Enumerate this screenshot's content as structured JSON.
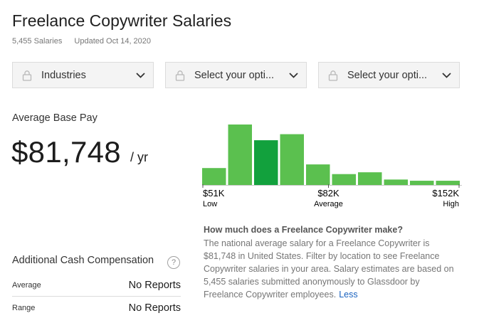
{
  "header": {
    "title": "Freelance Copywriter Salaries",
    "salary_count": "5,455 Salaries",
    "updated": "Updated Oct 14, 2020"
  },
  "filters": [
    {
      "label": "Industries",
      "icon": "lock-icon"
    },
    {
      "label": "Select your opti...",
      "icon": "lock-icon"
    },
    {
      "label": "Select your opti...",
      "icon": "lock-icon"
    }
  ],
  "average_pay": {
    "label": "Average Base Pay",
    "value": "$81,748",
    "unit": "/ yr"
  },
  "histogram": {
    "colors": {
      "bar": "#5bc04f",
      "highlight": "#12a13d"
    },
    "relative_heights": [
      0.28,
      1.0,
      0.74,
      0.84,
      0.34,
      0.18,
      0.21,
      0.09,
      0.07,
      0.07
    ],
    "highlight_index": 2,
    "axis": [
      {
        "value": "$51K",
        "sub": "Low"
      },
      {
        "value": "$82K",
        "sub": "Average"
      },
      {
        "value": "$152K",
        "sub": "High"
      }
    ]
  },
  "info": {
    "question": "How much does a Freelance Copywriter make?",
    "text": "The national average salary for a Freelance Copywriter is $81,748 in United States. Filter by location to see Freelance Copywriter salaries in your area. Salary estimates are based on 5,455 salaries submitted anonymously to Glassdoor by Freelance Copywriter employees.",
    "link": "Less"
  },
  "additional_cash": {
    "title": "Additional Cash Compensation",
    "help": "?",
    "rows": [
      {
        "label": "Average",
        "value": "No Reports"
      },
      {
        "label": "Range",
        "value": "No Reports"
      }
    ]
  }
}
